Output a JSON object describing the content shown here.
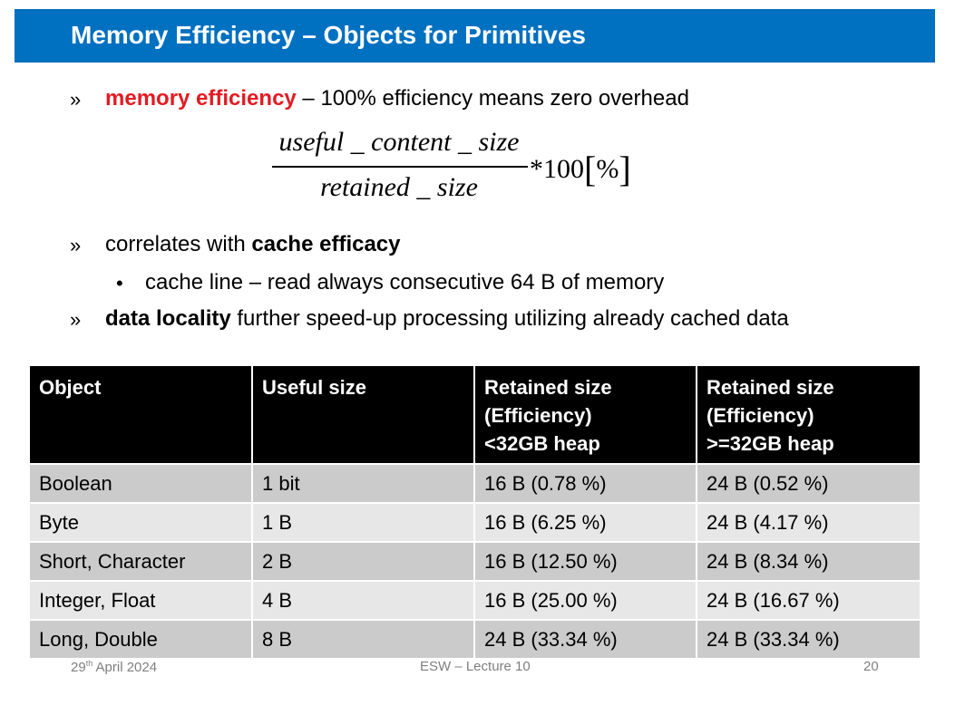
{
  "slide": {
    "title": "Memory Efficiency – Objects for Primitives"
  },
  "bullets": {
    "b1_marker": "»",
    "b1_highlight": "memory efficiency",
    "b1_rest": " – 100% efficiency means zero overhead",
    "b2_marker": "»",
    "b2_text": "correlates with ",
    "b2_bold": "cache efficacy",
    "sub_marker": "•",
    "sub_text": "cache line – read always consecutive 64 B of memory",
    "b3_marker": "»",
    "b3_bold": "data locality",
    "b3_rest": " further speed-up processing utilizing already cached data"
  },
  "formula": {
    "numerator": "useful _ content _ size",
    "denominator": "retained _ size",
    "multiplier": "*100",
    "bracket_open": "[",
    "unit": "%",
    "bracket_close": "]"
  },
  "table": {
    "headers": [
      [
        "Object"
      ],
      [
        "Useful size"
      ],
      [
        "Retained size",
        "(Efficiency)",
        "<32GB heap"
      ],
      [
        "Retained size",
        "(Efficiency)",
        ">=32GB heap"
      ]
    ],
    "rows": [
      [
        "Boolean",
        "1 bit",
        "16 B (0.78 %)",
        "24 B (0.52 %)"
      ],
      [
        "Byte",
        "1 B",
        "16 B (6.25 %)",
        "24 B (4.17 %)"
      ],
      [
        "Short, Character",
        "2 B",
        "16 B (12.50 %)",
        "24 B (8.34 %)"
      ],
      [
        "Integer, Float",
        "4 B",
        "16 B (25.00 %)",
        "24 B (16.67 %)"
      ],
      [
        "Long, Double",
        "8 B",
        "24 B (33.34 %)",
        "24 B (33.34 %)"
      ]
    ]
  },
  "footer": {
    "date_day": "29",
    "date_suffix": "th",
    "date_rest": " April 2024",
    "center": "ESW – Lecture 10",
    "page_number": "20"
  },
  "colors": {
    "title_bar": "#0070c0",
    "highlight_red": "#e31b23",
    "header_bg": "#000000",
    "row_dark": "#cbcbcb",
    "row_light": "#e7e7e7"
  }
}
